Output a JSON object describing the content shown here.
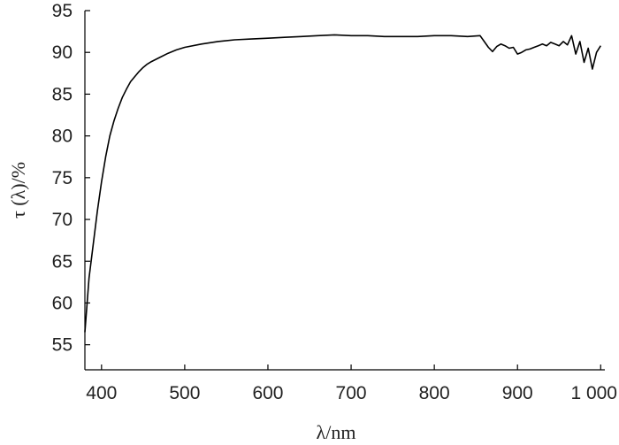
{
  "chart_data": {
    "type": "line",
    "title": "",
    "xlabel": "λ/nm",
    "ylabel": "τ (λ)/%",
    "xlim": [
      380,
      1005
    ],
    "ylim": [
      52,
      95
    ],
    "x_ticks": [
      400,
      500,
      600,
      700,
      800,
      900,
      1000
    ],
    "x_tick_labels": [
      "400",
      "500",
      "600",
      "700",
      "800",
      "900",
      "1 000"
    ],
    "y_ticks": [
      55,
      60,
      65,
      70,
      75,
      80,
      85,
      90,
      95
    ],
    "y_tick_labels": [
      "55",
      "60",
      "65",
      "70",
      "75",
      "80",
      "85",
      "90",
      "95"
    ],
    "grid": false,
    "legend": "none",
    "series": [
      {
        "x": [
          380,
          385,
          390,
          395,
          400,
          405,
          410,
          415,
          420,
          425,
          430,
          435,
          440,
          445,
          450,
          455,
          460,
          470,
          480,
          490,
          500,
          520,
          540,
          560,
          580,
          600,
          620,
          640,
          660,
          680,
          700,
          720,
          740,
          760,
          780,
          800,
          820,
          840,
          855,
          860,
          865,
          870,
          875,
          880,
          885,
          890,
          895,
          900,
          905,
          910,
          915,
          920,
          925,
          930,
          935,
          940,
          945,
          950,
          955,
          960,
          965,
          970,
          975,
          980,
          985,
          990,
          995,
          1000
        ],
        "y": [
          56.5,
          63,
          67,
          71,
          74.5,
          77.5,
          80,
          81.8,
          83.3,
          84.6,
          85.6,
          86.5,
          87.1,
          87.7,
          88.2,
          88.6,
          88.9,
          89.4,
          89.9,
          90.3,
          90.6,
          91.0,
          91.3,
          91.5,
          91.6,
          91.7,
          91.8,
          91.9,
          92.0,
          92.1,
          92.0,
          92.0,
          91.9,
          91.9,
          91.9,
          92.0,
          92.0,
          91.9,
          92.0,
          91.3,
          90.6,
          90.1,
          90.7,
          91.0,
          90.8,
          90.5,
          90.6,
          89.8,
          90.0,
          90.3,
          90.4,
          90.6,
          90.8,
          91.0,
          90.8,
          91.2,
          91.0,
          90.8,
          91.3,
          90.9,
          92.0,
          89.8,
          91.3,
          88.8,
          90.5,
          88.0,
          90.0,
          90.8
        ]
      }
    ]
  }
}
